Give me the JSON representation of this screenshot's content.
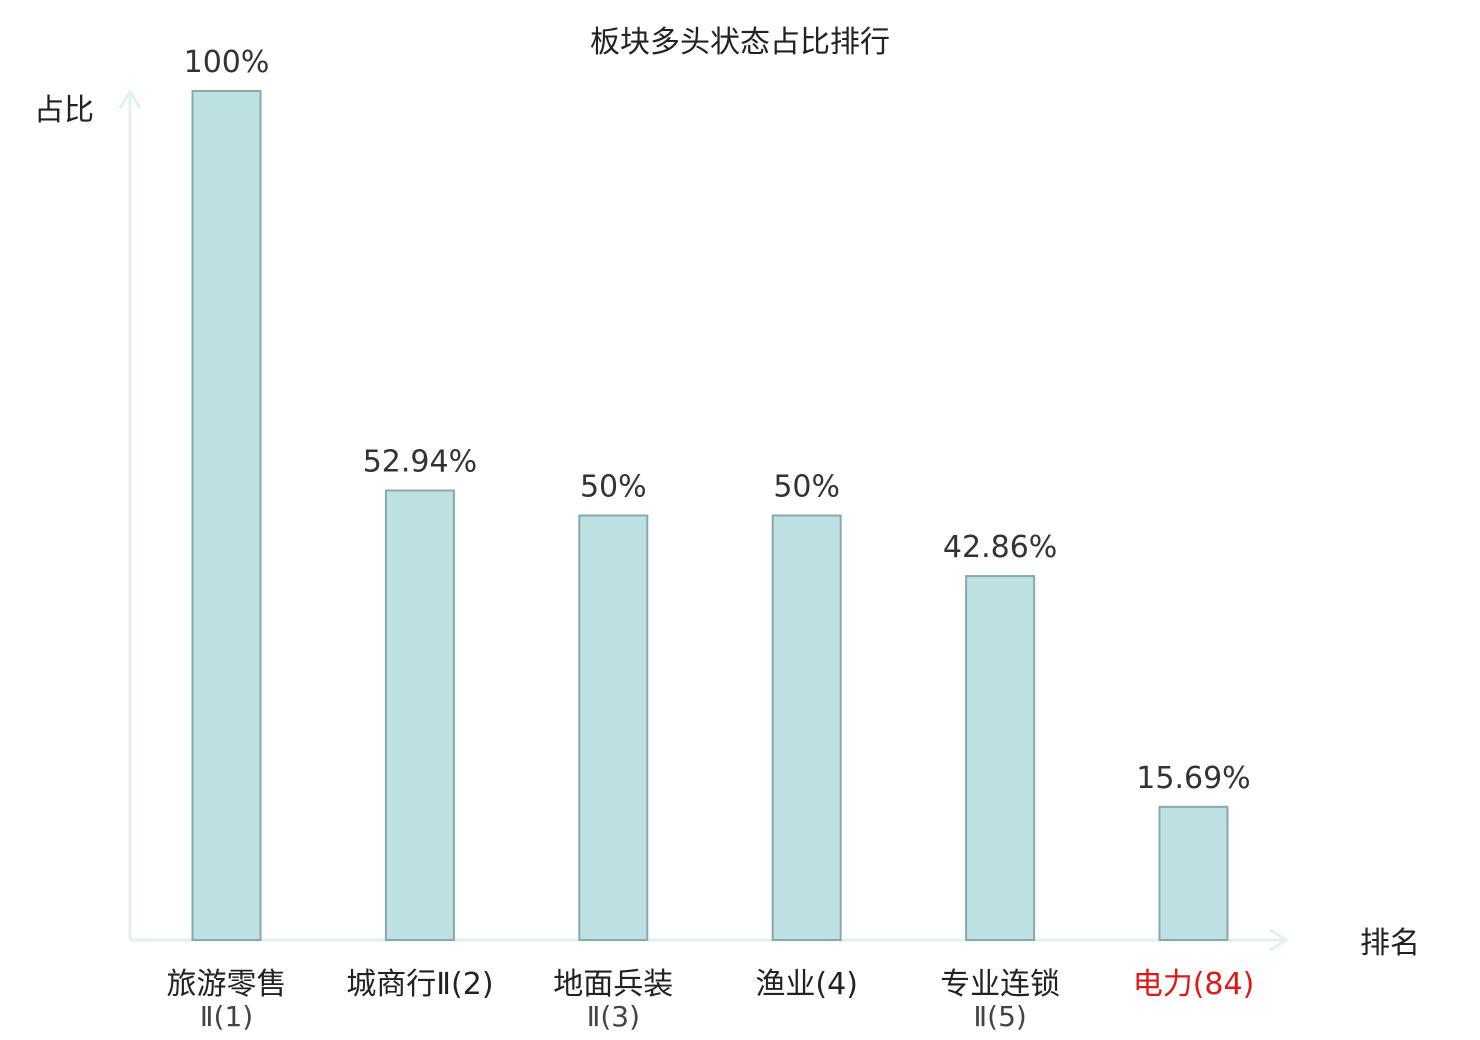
{
  "chart_data": {
    "type": "bar",
    "title": "板块多头状态占比排行",
    "ylabel": "占比",
    "xlabel": "排名",
    "ylim": [
      0,
      100
    ],
    "grid": false,
    "colors": {
      "bar_fill": "#bde0e2",
      "bar_stroke": "#8aa9ac",
      "axis": "#dff2ef",
      "highlight": "#e01818"
    },
    "categories": [
      {
        "line1": "旅游零售",
        "line2": "Ⅱ(1)",
        "highlight": false
      },
      {
        "line1": "城商行Ⅱ(2)",
        "line2": "",
        "highlight": false
      },
      {
        "line1": "地面兵装",
        "line2": "Ⅱ(3)",
        "highlight": false
      },
      {
        "line1": "渔业(4)",
        "line2": "",
        "highlight": false
      },
      {
        "line1": "专业连锁",
        "line2": "Ⅱ(5)",
        "highlight": false
      },
      {
        "line1": "电力(84)",
        "line2": "",
        "highlight": true
      }
    ],
    "values": [
      100,
      52.94,
      50,
      50,
      42.86,
      15.69
    ],
    "value_labels": [
      "100%",
      "52.94%",
      "50%",
      "50%",
      "42.86%",
      "15.69%"
    ]
  }
}
